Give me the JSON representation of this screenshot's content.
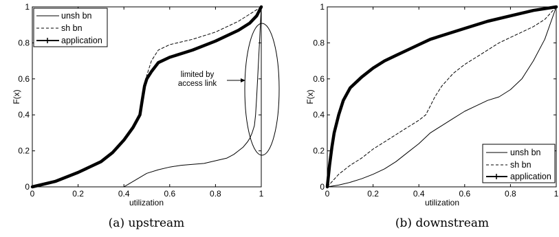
{
  "chart_data": [
    {
      "type": "line",
      "caption": "(a) upstream",
      "xlabel": "utilization",
      "ylabel": "F(x)",
      "xlim": [
        0,
        1
      ],
      "ylim": [
        0,
        1
      ],
      "xticks": [
        "0",
        "0.2",
        "0.4",
        "0.6",
        "0.8",
        "1"
      ],
      "yticks": [
        "0",
        "0.2",
        "0.4",
        "0.6",
        "0.8",
        "1"
      ],
      "legend_placement": "top-left",
      "annotation": "limited by access link",
      "series": [
        {
          "name": "unsh bn",
          "style": "solid",
          "x": [
            0,
            0.4,
            0.42,
            0.46,
            0.5,
            0.55,
            0.6,
            0.65,
            0.7,
            0.75,
            0.8,
            0.85,
            0.88,
            0.9,
            0.92,
            0.94,
            0.95,
            0.96,
            0.97,
            0.975,
            0.98,
            0.99,
            1.0
          ],
          "y": [
            0,
            0,
            0.015,
            0.045,
            0.075,
            0.095,
            0.11,
            0.12,
            0.125,
            0.13,
            0.145,
            0.16,
            0.18,
            0.2,
            0.22,
            0.25,
            0.27,
            0.3,
            0.34,
            0.4,
            0.5,
            0.75,
            1.0
          ]
        },
        {
          "name": "sh bn",
          "style": "dashed",
          "x": [
            0,
            0.1,
            0.2,
            0.3,
            0.35,
            0.4,
            0.44,
            0.47,
            0.48,
            0.49,
            0.5,
            0.52,
            0.55,
            0.6,
            0.7,
            0.8,
            0.9,
            0.95,
            1.0
          ],
          "y": [
            0,
            0.03,
            0.08,
            0.14,
            0.19,
            0.26,
            0.33,
            0.4,
            0.48,
            0.55,
            0.62,
            0.7,
            0.76,
            0.79,
            0.82,
            0.86,
            0.92,
            0.96,
            1.0
          ]
        },
        {
          "name": "application",
          "style": "thick",
          "x": [
            0,
            0.1,
            0.2,
            0.3,
            0.35,
            0.4,
            0.44,
            0.47,
            0.48,
            0.49,
            0.5,
            0.52,
            0.55,
            0.6,
            0.7,
            0.8,
            0.9,
            0.95,
            0.98,
            1.0
          ],
          "y": [
            0,
            0.03,
            0.08,
            0.14,
            0.19,
            0.26,
            0.33,
            0.4,
            0.48,
            0.56,
            0.6,
            0.64,
            0.69,
            0.72,
            0.76,
            0.81,
            0.87,
            0.91,
            0.95,
            1.0
          ]
        }
      ]
    },
    {
      "type": "line",
      "caption": "(b) downstream",
      "xlabel": "utilization",
      "ylabel": "F(x)",
      "xlim": [
        0,
        1
      ],
      "ylim": [
        0,
        1
      ],
      "xticks": [
        "0",
        "0.2",
        "0.4",
        "0.6",
        "0.8",
        "1"
      ],
      "yticks": [
        "0",
        "0.2",
        "0.4",
        "0.6",
        "0.8",
        "1"
      ],
      "legend_placement": "bottom-right",
      "series": [
        {
          "name": "unsh bn",
          "style": "solid",
          "x": [
            0,
            0.05,
            0.1,
            0.15,
            0.2,
            0.25,
            0.3,
            0.35,
            0.4,
            0.45,
            0.5,
            0.55,
            0.6,
            0.65,
            0.7,
            0.75,
            0.8,
            0.85,
            0.9,
            0.95,
            1.0
          ],
          "y": [
            0,
            0.01,
            0.025,
            0.045,
            0.07,
            0.1,
            0.14,
            0.19,
            0.24,
            0.3,
            0.34,
            0.38,
            0.42,
            0.45,
            0.48,
            0.5,
            0.54,
            0.6,
            0.7,
            0.82,
            1.0
          ]
        },
        {
          "name": "sh bn",
          "style": "dashed",
          "x": [
            0,
            0.05,
            0.1,
            0.15,
            0.2,
            0.25,
            0.3,
            0.35,
            0.4,
            0.43,
            0.45,
            0.47,
            0.5,
            0.55,
            0.6,
            0.65,
            0.7,
            0.75,
            0.8,
            0.85,
            0.9,
            0.95,
            1.0
          ],
          "y": [
            0,
            0.07,
            0.12,
            0.16,
            0.21,
            0.25,
            0.29,
            0.33,
            0.37,
            0.4,
            0.45,
            0.5,
            0.56,
            0.63,
            0.68,
            0.72,
            0.76,
            0.8,
            0.83,
            0.86,
            0.89,
            0.93,
            1.0
          ]
        },
        {
          "name": "application",
          "style": "thick",
          "x": [
            0,
            0.01,
            0.02,
            0.03,
            0.05,
            0.07,
            0.1,
            0.15,
            0.2,
            0.25,
            0.3,
            0.35,
            0.4,
            0.45,
            0.5,
            0.6,
            0.7,
            0.8,
            0.9,
            1.0
          ],
          "y": [
            0,
            0.12,
            0.22,
            0.3,
            0.4,
            0.48,
            0.55,
            0.61,
            0.66,
            0.7,
            0.73,
            0.76,
            0.79,
            0.82,
            0.84,
            0.88,
            0.92,
            0.95,
            0.98,
            1.0
          ]
        }
      ]
    }
  ]
}
